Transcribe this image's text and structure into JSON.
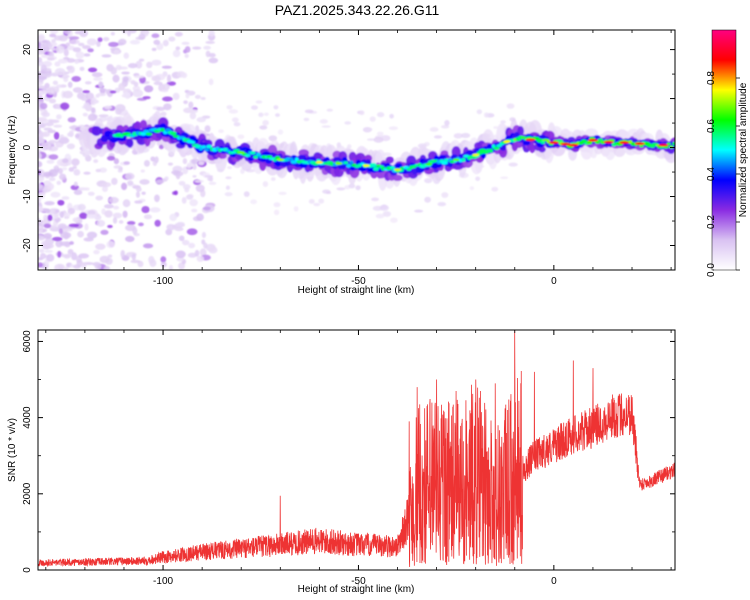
{
  "title": "PAZ1.2025.343.22.26.G11",
  "chart_data": [
    {
      "type": "heatmap",
      "name": "spectrogram",
      "xlabel": "Height of straight line (km)",
      "ylabel": "Frequency (Hz)",
      "xlim": [
        -132,
        31
      ],
      "ylim": [
        -25,
        24
      ],
      "xticks": [
        -100,
        -50,
        0
      ],
      "yticks": [
        -20,
        -10,
        0,
        10,
        20
      ],
      "colorbar": {
        "label": "Normalized spectral amplitude",
        "range": [
          0,
          1
        ],
        "ticks": [
          "0.0",
          "0.2",
          "0.4",
          "0.6",
          "0.8"
        ],
        "tick_values": [
          0.0,
          0.2,
          0.4,
          0.6,
          0.8
        ],
        "colormap": [
          "#ffffff",
          "#d9c2f2",
          "#8a2be2",
          "#0000ff",
          "#00ffff",
          "#00ff00",
          "#ffff00",
          "#ff0000",
          "#ff0080"
        ]
      },
      "ridge": {
        "x": [
          -115,
          -105,
          -100,
          -95,
          -90,
          -80,
          -70,
          -60,
          -50,
          -45,
          -40,
          -35,
          -30,
          -25,
          -20,
          -15,
          -10,
          -5,
          0,
          5,
          10,
          15,
          20,
          25,
          31
        ],
        "frequency_hz": [
          2,
          3,
          3.5,
          2,
          0,
          -1,
          -2.5,
          -3,
          -3.5,
          -4,
          -4.5,
          -4,
          -3,
          -2.5,
          -1.5,
          0,
          2,
          1.5,
          1,
          0.5,
          1.5,
          1,
          1,
          0.5,
          0.5
        ]
      }
    },
    {
      "type": "line",
      "name": "snr",
      "xlabel": "Height of straight line (km)",
      "ylabel": "SNR (10 * v/v)",
      "xlim": [
        -132,
        31
      ],
      "ylim": [
        0,
        6300
      ],
      "xticks": [
        -100,
        -50,
        0
      ],
      "yticks": [
        0,
        2000,
        4000,
        6000
      ],
      "color": "#ee3333",
      "envelope": {
        "x": [
          -132,
          -120,
          -105,
          -100,
          -90,
          -80,
          -70,
          -60,
          -50,
          -40,
          -37,
          -35,
          -30,
          -25,
          -20,
          -15,
          -10,
          -5,
          0,
          5,
          10,
          15,
          20,
          22,
          25,
          31
        ],
        "level": [
          200,
          220,
          250,
          350,
          500,
          600,
          700,
          800,
          700,
          650,
          1500,
          2200,
          2500,
          2300,
          2600,
          2000,
          2500,
          3100,
          3400,
          3700,
          3900,
          4200,
          4300,
          2300,
          2400,
          2700
        ]
      },
      "peaks": [
        {
          "x": -70,
          "value": 1950
        },
        {
          "x": -37,
          "value": 3900
        },
        {
          "x": -35,
          "value": 4800
        },
        {
          "x": -30,
          "value": 5000
        },
        {
          "x": -25,
          "value": 4700
        },
        {
          "x": -20,
          "value": 5000
        },
        {
          "x": -15,
          "value": 4900
        },
        {
          "x": -10,
          "value": 6300
        },
        {
          "x": -5,
          "value": 5200
        },
        {
          "x": 5,
          "value": 5500
        },
        {
          "x": 10,
          "value": 5300
        }
      ]
    }
  ]
}
